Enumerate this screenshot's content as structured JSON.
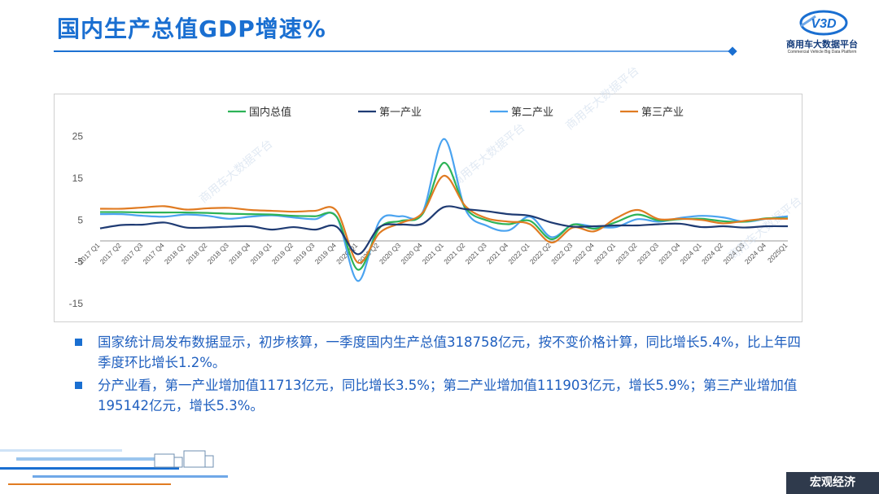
{
  "page": {
    "title": "国内生产总值GDP增速%",
    "logo_cn": "商用车大数据平台",
    "logo_en": "Commercial Vehicle Big Data Platform",
    "logo_mark": "V3D",
    "footer_tag": "宏观经济",
    "watermark": "商用车大数据平台"
  },
  "bullets": [
    "国家统计局发布数据显示，初步核算，一季度国内生产总值318758亿元，按不变价格计算，同比增长5.4%，比上年四季度环比增长1.2%。",
    "分产业看，第一产业增加值11713亿元，同比增长3.5%；第二产业增加值111903亿元，增长5.9%；第三产业增加值195142亿元，增长5.3%。"
  ],
  "colors": {
    "accent": "#1a6fd1",
    "gdp": "#2db357",
    "primary": "#1f3b73",
    "secondary": "#4aa3f0",
    "tertiary": "#e07b22"
  },
  "chart_data": {
    "type": "line",
    "ylim": [
      -15,
      30
    ],
    "yticks": [
      -15,
      -5,
      5,
      15,
      25
    ],
    "categories": [
      "2017 Q1",
      "2017 Q2",
      "2017 Q3",
      "2017 Q4",
      "2018 Q1",
      "2018 Q2",
      "2018 Q3",
      "2018 Q4",
      "2019 Q1",
      "2019 Q2",
      "2019 Q3",
      "2019 Q4",
      "2020 Q1",
      "2020 Q2",
      "2020 Q3",
      "2020 Q4",
      "2021 Q1",
      "2021 Q2",
      "2021 Q3",
      "2021 Q4",
      "2022 Q1",
      "2022 Q2",
      "2022 Q3",
      "2022 Q4",
      "2023 Q1",
      "2023 Q2",
      "2023 Q3",
      "2023 Q4",
      "2024 Q1",
      "2024 Q2",
      "2024 Q3",
      "2024 Q4",
      "2025Q1"
    ],
    "series": [
      {
        "name": "国内总值",
        "values": [
          6.9,
          6.9,
          6.8,
          6.8,
          6.8,
          6.7,
          6.5,
          6.4,
          6.3,
          6.0,
          5.9,
          5.8,
          -6.9,
          3.1,
          4.8,
          6.4,
          18.7,
          7.9,
          4.9,
          4.0,
          4.8,
          0.4,
          3.9,
          2.9,
          4.5,
          6.3,
          4.9,
          5.2,
          5.3,
          4.7,
          4.6,
          5.4,
          5.4
        ]
      },
      {
        "name": "第一产业",
        "values": [
          3.0,
          3.8,
          3.9,
          4.4,
          3.2,
          3.2,
          3.4,
          3.5,
          2.7,
          3.3,
          2.7,
          3.4,
          -3.2,
          3.3,
          3.9,
          4.1,
          8.1,
          7.6,
          7.1,
          6.4,
          6.0,
          4.4,
          3.4,
          3.5,
          3.7,
          3.7,
          4.0,
          4.1,
          3.3,
          3.5,
          3.2,
          3.5,
          3.5
        ]
      },
      {
        "name": "第二产业",
        "values": [
          6.4,
          6.4,
          6.0,
          5.8,
          6.3,
          6.0,
          5.3,
          5.8,
          6.1,
          5.6,
          5.2,
          5.8,
          -9.6,
          4.7,
          5.9,
          6.8,
          24.4,
          7.5,
          3.6,
          2.5,
          5.8,
          0.9,
          3.9,
          3.4,
          3.3,
          5.2,
          4.6,
          5.5,
          6.0,
          5.6,
          4.6,
          5.3,
          5.9
        ]
      },
      {
        "name": "第三产业",
        "values": [
          7.7,
          7.7,
          8.0,
          8.3,
          7.5,
          7.8,
          7.9,
          7.4,
          7.2,
          7.0,
          7.2,
          7.2,
          -5.2,
          1.9,
          4.3,
          6.7,
          15.6,
          8.3,
          5.4,
          4.6,
          4.0,
          -0.4,
          3.2,
          2.3,
          5.4,
          7.4,
          5.2,
          5.3,
          5.0,
          4.2,
          4.8,
          5.3,
          5.3
        ]
      }
    ]
  }
}
